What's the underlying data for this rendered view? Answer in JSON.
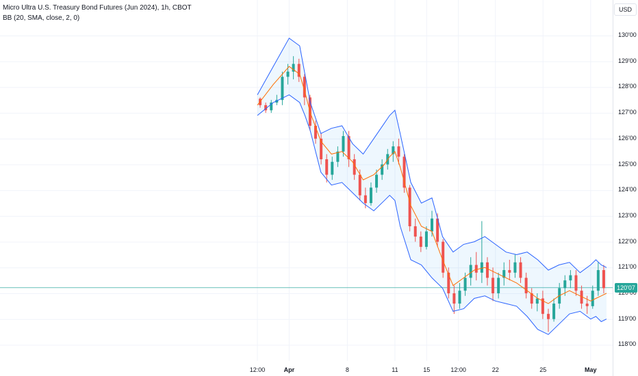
{
  "legend": {
    "title": "Micro Ultra U.S. Treasury Bond Futures (Jun 2024), 1h, CBOT",
    "indicator": "BB (20, SMA, close, 2, 0)"
  },
  "currency_button": "USD",
  "last_price_label": "120'07",
  "colors": {
    "up": "#26a69a",
    "down": "#ef5350",
    "band": "#2962ff",
    "basis": "#ff6d00",
    "band_fill": "#2196f3",
    "grid": "#f0f3fa",
    "last_line": "#26a69a"
  },
  "chart_data": {
    "type": "candlestick",
    "title": "Micro Ultra U.S. Treasury Bond Futures (Jun 2024), 1h, CBOT",
    "indicator": "BB (20, SMA, close, 2, 0)",
    "ylim": [
      117.5,
      130.5
    ],
    "y_ticks": [
      {
        "label": "130'00",
        "value": 130
      },
      {
        "label": "129'00",
        "value": 129
      },
      {
        "label": "128'00",
        "value": 128
      },
      {
        "label": "127'00",
        "value": 127
      },
      {
        "label": "126'00",
        "value": 126
      },
      {
        "label": "125'00",
        "value": 125
      },
      {
        "label": "124'00",
        "value": 124
      },
      {
        "label": "123'00",
        "value": 123
      },
      {
        "label": "122'00",
        "value": 122
      },
      {
        "label": "121'00",
        "value": 121
      },
      {
        "label": "120'00",
        "value": 120
      },
      {
        "label": "119'00",
        "value": 119
      },
      {
        "label": "118'00",
        "value": 118
      }
    ],
    "x_ticks": [
      {
        "label": "12:00",
        "t": 0,
        "bold": false
      },
      {
        "label": "Apr",
        "t": 6,
        "bold": true
      },
      {
        "label": "8",
        "t": 17,
        "bold": false
      },
      {
        "label": "11",
        "t": 26,
        "bold": false
      },
      {
        "label": "15",
        "t": 32,
        "bold": false
      },
      {
        "label": "12:00",
        "t": 38,
        "bold": false
      },
      {
        "label": "22",
        "t": 45,
        "bold": false
      },
      {
        "label": "25",
        "t": 54,
        "bold": false
      },
      {
        "label": "May",
        "t": 63,
        "bold": true
      }
    ],
    "t_range": [
      0,
      66
    ],
    "last_price": 120.22,
    "ohlc": [
      [
        127.55,
        127.6,
        127.2,
        127.3
      ],
      [
        127.3,
        127.4,
        127.0,
        127.1
      ],
      [
        127.1,
        127.5,
        127.0,
        127.4
      ],
      [
        127.4,
        127.7,
        127.3,
        127.5
      ],
      [
        127.5,
        128.6,
        127.3,
        128.4
      ],
      [
        128.4,
        128.9,
        128.1,
        128.6
      ],
      [
        128.6,
        129.2,
        128.3,
        128.9
      ],
      [
        128.9,
        129.1,
        128.2,
        128.4
      ],
      [
        128.4,
        128.5,
        127.3,
        127.6
      ],
      [
        127.6,
        127.7,
        126.3,
        126.5
      ],
      [
        126.5,
        126.7,
        125.8,
        126.0
      ],
      [
        126.0,
        126.2,
        125.0,
        125.2
      ],
      [
        125.2,
        125.4,
        124.3,
        124.6
      ],
      [
        124.6,
        125.3,
        124.4,
        125.1
      ],
      [
        125.1,
        125.7,
        124.9,
        125.5
      ],
      [
        125.5,
        126.3,
        125.3,
        126.1
      ],
      [
        126.1,
        126.3,
        124.9,
        125.2
      ],
      [
        125.2,
        125.4,
        124.4,
        124.6
      ],
      [
        124.6,
        124.8,
        123.6,
        123.8
      ],
      [
        123.8,
        124.1,
        123.3,
        123.5
      ],
      [
        123.5,
        124.3,
        123.4,
        124.1
      ],
      [
        124.1,
        124.8,
        123.9,
        124.6
      ],
      [
        124.6,
        125.2,
        124.4,
        125.0
      ],
      [
        125.0,
        125.6,
        124.8,
        125.4
      ],
      [
        125.4,
        125.9,
        125.1,
        125.7
      ],
      [
        125.7,
        126.0,
        125.0,
        125.3
      ],
      [
        125.3,
        125.4,
        123.9,
        124.1
      ],
      [
        124.1,
        124.2,
        122.4,
        122.6
      ],
      [
        122.6,
        122.9,
        122.0,
        122.2
      ],
      [
        122.2,
        122.4,
        121.6,
        121.8
      ],
      [
        121.8,
        122.6,
        121.7,
        122.4
      ],
      [
        122.4,
        123.2,
        122.2,
        122.9
      ],
      [
        122.9,
        123.1,
        121.8,
        122.0
      ],
      [
        122.0,
        122.1,
        120.6,
        120.8
      ],
      [
        120.8,
        121.0,
        119.8,
        120.0
      ],
      [
        120.0,
        120.3,
        119.2,
        119.6
      ],
      [
        119.6,
        120.4,
        119.4,
        120.1
      ],
      [
        120.1,
        120.8,
        119.9,
        120.6
      ],
      [
        120.6,
        121.4,
        120.3,
        121.1
      ],
      [
        121.1,
        121.6,
        120.5,
        120.8
      ],
      [
        120.8,
        122.8,
        120.4,
        121.2
      ],
      [
        121.2,
        121.4,
        120.3,
        120.6
      ],
      [
        120.6,
        121.0,
        119.7,
        120.0
      ],
      [
        120.0,
        120.8,
        119.8,
        120.6
      ],
      [
        120.6,
        121.2,
        120.3,
        120.9
      ],
      [
        120.9,
        121.3,
        120.5,
        120.8
      ],
      [
        120.8,
        121.5,
        120.6,
        121.2
      ],
      [
        121.2,
        121.4,
        120.4,
        120.6
      ],
      [
        120.6,
        120.8,
        119.8,
        120.0
      ],
      [
        120.0,
        120.2,
        119.4,
        119.6
      ],
      [
        119.6,
        120.0,
        119.3,
        119.8
      ],
      [
        119.8,
        120.1,
        119.0,
        119.2
      ],
      [
        119.2,
        119.4,
        118.5,
        119.0
      ],
      [
        119.0,
        119.8,
        118.9,
        119.6
      ],
      [
        119.6,
        120.4,
        119.4,
        120.2
      ],
      [
        120.2,
        120.7,
        119.9,
        120.5
      ],
      [
        120.5,
        120.9,
        120.2,
        120.7
      ],
      [
        120.7,
        120.9,
        119.9,
        120.1
      ],
      [
        120.1,
        120.3,
        119.4,
        119.6
      ],
      [
        119.6,
        119.9,
        119.2,
        119.5
      ],
      [
        119.5,
        120.3,
        119.4,
        120.1
      ],
      [
        120.1,
        121.2,
        119.9,
        120.9
      ],
      [
        120.9,
        121.1,
        120.0,
        120.2
      ]
    ],
    "bollinger": {
      "t": [
        0,
        3,
        6,
        8,
        9,
        10,
        12,
        14,
        16,
        18,
        20,
        22,
        24,
        25,
        26,
        27,
        29,
        31,
        33,
        35,
        37,
        39,
        41,
        43,
        45,
        47,
        49,
        51,
        53,
        55,
        57,
        59,
        61,
        63,
        64,
        65,
        66
      ],
      "upper": [
        127.7,
        128.8,
        129.9,
        129.6,
        128.5,
        127.4,
        126.2,
        126.4,
        126.5,
        125.8,
        125.4,
        126.0,
        126.6,
        126.9,
        127.1,
        126.2,
        124.3,
        123.5,
        123.7,
        122.2,
        121.6,
        121.9,
        122.0,
        122.2,
        121.9,
        121.6,
        121.5,
        121.6,
        121.3,
        120.9,
        121.1,
        121.2,
        120.8,
        121.1,
        121.3,
        121.1,
        121.0
      ],
      "basis": [
        127.3,
        128.1,
        128.8,
        128.5,
        127.8,
        127.0,
        125.9,
        125.4,
        125.5,
        125.1,
        124.4,
        124.6,
        125.0,
        125.3,
        125.5,
        124.9,
        123.4,
        122.6,
        122.4,
        121.3,
        120.3,
        120.6,
        120.9,
        121.0,
        120.8,
        120.6,
        120.4,
        120.1,
        119.8,
        119.6,
        119.9,
        120.1,
        119.9,
        119.7,
        119.8,
        119.9,
        120.0
      ],
      "lower": [
        126.9,
        127.4,
        127.7,
        127.4,
        126.9,
        126.3,
        124.7,
        124.2,
        124.3,
        123.9,
        123.5,
        123.2,
        123.6,
        123.8,
        123.6,
        122.6,
        121.3,
        121.1,
        120.6,
        120.2,
        119.3,
        119.4,
        119.8,
        119.9,
        119.7,
        119.6,
        119.5,
        119.1,
        118.6,
        118.4,
        118.8,
        119.2,
        119.3,
        119.0,
        119.1,
        118.9,
        119.0
      ]
    }
  }
}
